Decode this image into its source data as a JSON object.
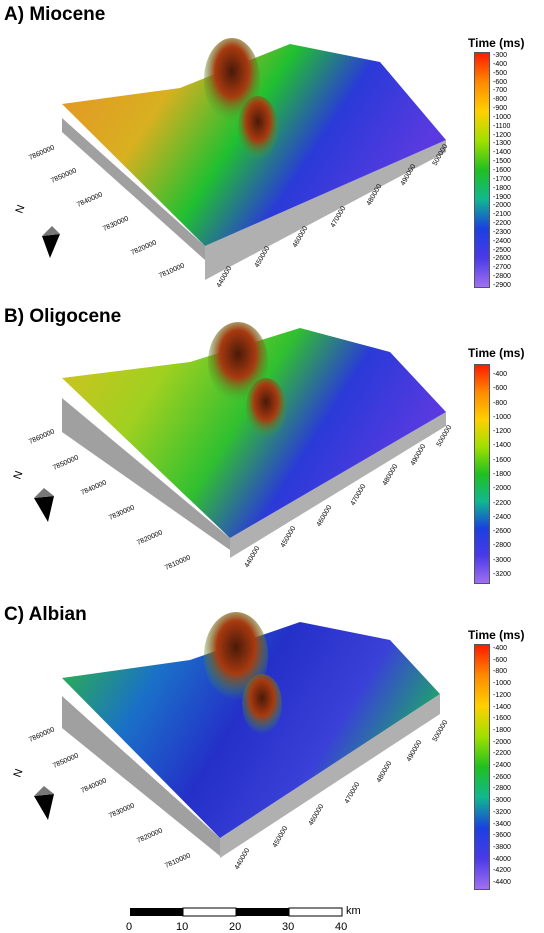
{
  "panels": [
    {
      "title": "A) Miocene",
      "legend_title": "Time (ms)",
      "legend_labels": [
        "-300",
        "-400",
        "-500",
        "-600",
        "-700",
        "-800",
        "-900",
        "-1000",
        "-1100",
        "-1200",
        "-1300",
        "-1400",
        "-1500",
        "-1600",
        "-1700",
        "-1800",
        "-1900",
        "-2000",
        "-2100",
        "-2200",
        "-2300",
        "-2400",
        "-2500",
        "-2600",
        "-2700",
        "-2800",
        "-2900"
      ],
      "y_ticks": [
        "7860000",
        "7850000",
        "7840000",
        "7830000",
        "7820000",
        "7810000"
      ],
      "x_ticks": [
        "440000",
        "450000",
        "460000",
        "470000",
        "480000",
        "490000",
        "500000"
      ],
      "north_label": "N",
      "colors": {
        "high": "#e8a020",
        "mid": "#20c020",
        "low": "#2020d0"
      }
    },
    {
      "title": "B) Oligocene",
      "legend_title": "Time (ms)",
      "legend_labels": [
        "-400",
        "-600",
        "-800",
        "-1000",
        "-1200",
        "-1400",
        "-1600",
        "-1800",
        "-2000",
        "-2200",
        "-2400",
        "-2600",
        "-2800",
        "-3000",
        "-3200"
      ],
      "y_ticks": [
        "7860000",
        "7850000",
        "7840000",
        "7830000",
        "7820000",
        "7810000"
      ],
      "x_ticks": [
        "440000",
        "450000",
        "460000",
        "470000",
        "480000",
        "490000",
        "500000"
      ],
      "north_label": "N",
      "colors": {
        "high": "#d8c020",
        "mid": "#30c030",
        "low": "#2828d0"
      }
    },
    {
      "title": "C)  Albian",
      "legend_title": "Time (ms)",
      "legend_labels": [
        "-400",
        "-600",
        "-800",
        "-1000",
        "-1200",
        "-1400",
        "-1600",
        "-1800",
        "-2000",
        "-2200",
        "-2400",
        "-2600",
        "-2800",
        "-3000",
        "-3200",
        "-3400",
        "-3600",
        "-3800",
        "-4000",
        "-4200",
        "-4400"
      ],
      "y_ticks": [
        "7860000",
        "7850000",
        "7840000",
        "7830000",
        "7820000",
        "7810000"
      ],
      "x_ticks": [
        "440000",
        "450000",
        "460000",
        "470000",
        "480000",
        "490000",
        "500000"
      ],
      "north_label": "N",
      "colors": {
        "high": "#30c030",
        "mid": "#1a70c8",
        "low": "#2424c8"
      }
    }
  ],
  "scalebar": {
    "labels": [
      "0",
      "10",
      "20",
      "30",
      "40"
    ],
    "unit": "km"
  }
}
